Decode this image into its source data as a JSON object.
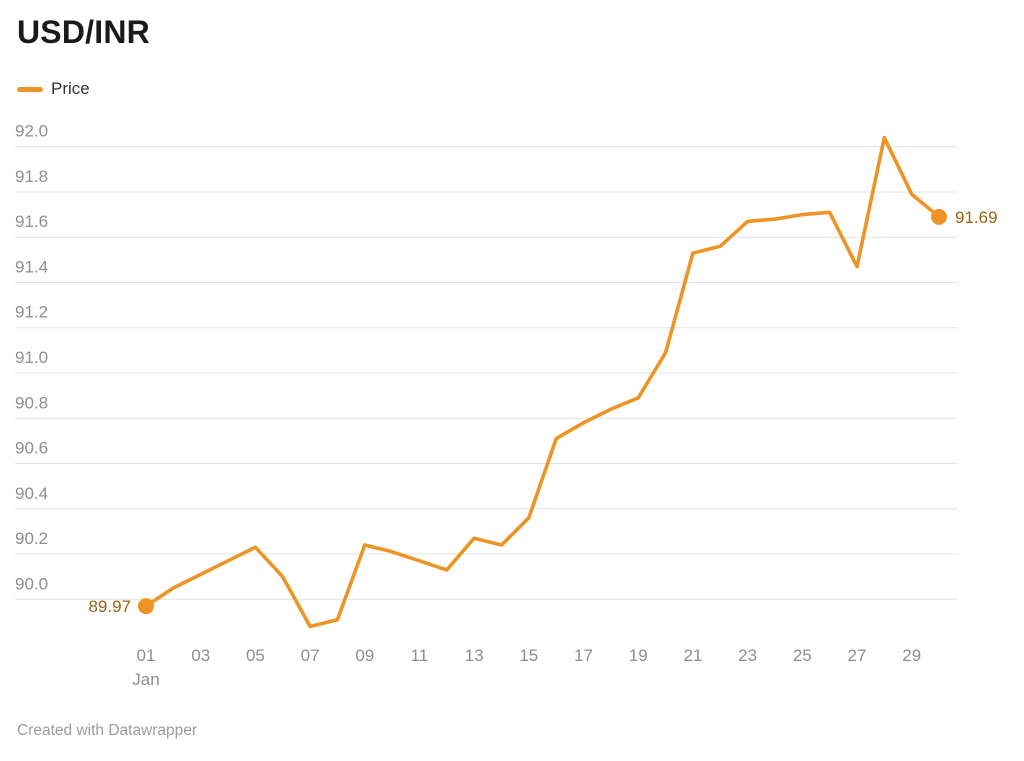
{
  "title": "USD/INR",
  "legend": {
    "label": "Price"
  },
  "footer": "Created with Datawrapper",
  "colors": {
    "line": "#EE9426",
    "marker": "#EE9426",
    "value_label": "#9B6312",
    "axis_label": "#8E8E8E",
    "gridline": "#E4E4E4",
    "title_text": "#1A1A1A",
    "legend_text": "#333333",
    "footer_text": "#9C9C9C",
    "background": "#FFFFFF"
  },
  "chart_data": {
    "type": "line",
    "title": "USD/INR",
    "xlabel": "",
    "ylabel": "",
    "x_month_label": "Jan",
    "x_tick_labels": [
      "01",
      "03",
      "05",
      "07",
      "09",
      "11",
      "13",
      "15",
      "17",
      "19",
      "21",
      "23",
      "25",
      "27",
      "29"
    ],
    "x_tick_days": [
      1,
      3,
      5,
      7,
      9,
      11,
      13,
      15,
      17,
      19,
      21,
      23,
      25,
      27,
      29
    ],
    "y_ticks": [
      92.0,
      91.8,
      91.6,
      91.4,
      91.2,
      91.0,
      90.8,
      90.6,
      90.4,
      90.2,
      90.0
    ],
    "ylim": [
      89.82,
      92.1
    ],
    "grid": "horizontal",
    "legend_position": "top-left",
    "series": [
      {
        "name": "Price",
        "x": [
          1,
          2,
          3,
          4,
          5,
          6,
          7,
          8,
          9,
          10,
          11,
          12,
          13,
          14,
          15,
          16,
          17,
          18,
          19,
          20,
          21,
          22,
          23,
          24,
          25,
          26,
          27,
          28,
          29,
          30
        ],
        "values": [
          89.97,
          90.05,
          90.11,
          90.17,
          90.23,
          90.1,
          89.88,
          89.91,
          90.24,
          90.21,
          90.17,
          90.13,
          90.27,
          90.24,
          90.36,
          90.71,
          90.78,
          90.84,
          90.89,
          91.09,
          91.53,
          91.56,
          91.67,
          91.68,
          91.7,
          91.71,
          91.47,
          92.04,
          91.79,
          91.69
        ]
      }
    ],
    "start_label": "89.97",
    "end_label": "91.69"
  }
}
